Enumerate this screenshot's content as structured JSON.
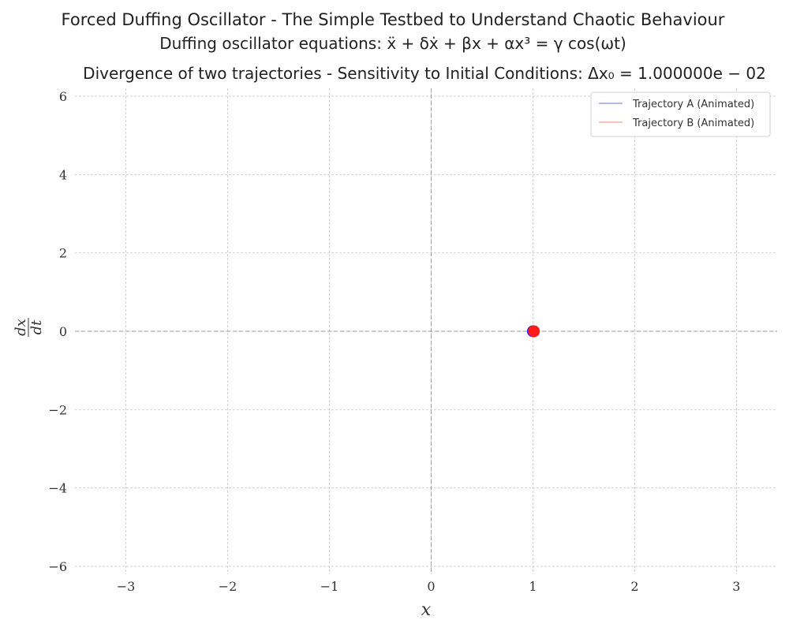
{
  "chart_data": {
    "type": "line",
    "title": "Forced Duffing Oscillator - The Simple Testbed to Understand Chaotic Behaviour",
    "subtitle": "Duffing oscillator equations: ẍ + δẋ + βx + αx³ = γ cos(ωt)",
    "subtitle2": "Divergence of two trajectories - Sensitivity to Initial Conditions: Δx₀ = 1.000000e − 02",
    "xlabel": "x",
    "ylabel_num": "dx",
    "ylabel_den": "dt",
    "xlim": [
      -3.5,
      3.4
    ],
    "ylim": [
      -6.2,
      6.2
    ],
    "xticks": [
      -3,
      -2,
      -1,
      0,
      1,
      2,
      3
    ],
    "yticks": [
      -6,
      -4,
      -2,
      0,
      2,
      4,
      6
    ],
    "grid": true,
    "legend_position": "top-right",
    "series": [
      {
        "name": "Trajectory A (Animated)",
        "color": "#1f1fff",
        "line_color": "#8a8fd8",
        "points": [
          [
            1.0,
            0.0
          ]
        ]
      },
      {
        "name": "Trajectory B (Animated)",
        "color": "#ff1a1a",
        "line_color": "#f0a090",
        "points": [
          [
            1.01,
            0.0
          ]
        ]
      }
    ]
  }
}
